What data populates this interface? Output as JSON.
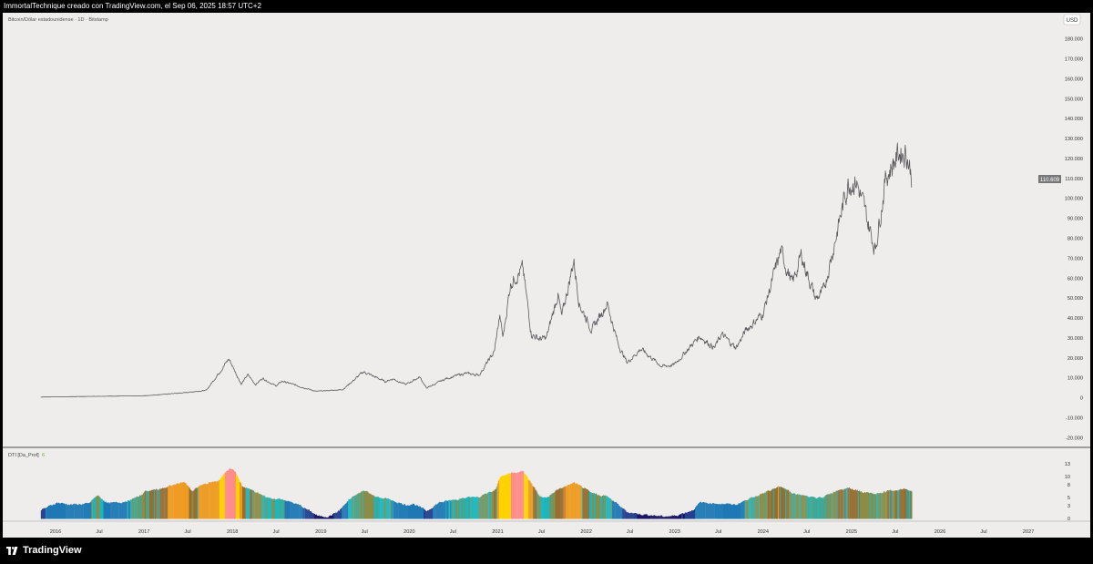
{
  "header": {
    "caption": "ImmortalTechnique creado con TradingView.com, el Sep 06, 2025 18:57 UTC+2"
  },
  "main_pane": {
    "title": "Bitcoin/Dólar estadounidense · 1D · Bitstamp",
    "currency_button": "USD",
    "last_price_label": "110.609",
    "price_tick_labels": [
      "180.000",
      "170.000",
      "160.000",
      "150.000",
      "140.000",
      "130.000",
      "120.000",
      "110.000",
      "100.000",
      "90.000",
      "80.000",
      "70.000",
      "60.000",
      "50.000",
      "40.000",
      "30.000",
      "20.000",
      "10.000",
      "0",
      "-10.000",
      "-20.000"
    ]
  },
  "indicator_pane": {
    "title": "DTI [Da_Prof]",
    "value": "6",
    "tick_labels": [
      "13",
      "10",
      "8",
      "5",
      "3",
      "0"
    ]
  },
  "time_axis": {
    "labels": [
      "2016",
      "Jul",
      "2017",
      "Jul",
      "2018",
      "Jul",
      "2019",
      "Jul",
      "2020",
      "Jul",
      "2021",
      "Jul",
      "2022",
      "Jul",
      "2023",
      "Jul",
      "2024",
      "Jul",
      "2025",
      "Jul",
      "2026",
      "Jul",
      "2027"
    ]
  },
  "footer": {
    "brand": "TradingView"
  },
  "colors": {
    "background": "#eeedec",
    "price_line": "#5a5a5e",
    "dti_palette": [
      "#1b1464",
      "#23408e",
      "#1e78b4",
      "#1ab6be",
      "#8c8c46",
      "#966e32",
      "#ee9a1e",
      "#ffd200",
      "#ff8c8c"
    ]
  },
  "chart_data": [
    {
      "type": "line",
      "title": "Bitcoin/Dólar estadounidense · 1D · Bitstamp",
      "ylim": [
        -20000,
        180000
      ],
      "xlim": [
        "2015-11-01",
        "2027-04-01"
      ],
      "grid": false,
      "series": [
        {
          "name": "BTCUSD",
          "points": [
            [
              "2015-11-01",
              330
            ],
            [
              "2016-06-15",
              700
            ],
            [
              "2016-12-31",
              960
            ],
            [
              "2017-06-15",
              2500
            ],
            [
              "2017-09-15",
              3700
            ],
            [
              "2017-12-17",
              19500
            ],
            [
              "2018-02-06",
              6900
            ],
            [
              "2018-03-05",
              11500
            ],
            [
              "2018-04-06",
              6600
            ],
            [
              "2018-05-05",
              9800
            ],
            [
              "2018-06-29",
              5900
            ],
            [
              "2018-07-25",
              8300
            ],
            [
              "2018-11-25",
              3800
            ],
            [
              "2018-12-15",
              3200
            ],
            [
              "2019-04-01",
              4100
            ],
            [
              "2019-06-26",
              13000
            ],
            [
              "2019-09-24",
              8100
            ],
            [
              "2019-10-26",
              9500
            ],
            [
              "2019-12-17",
              6600
            ],
            [
              "2020-02-13",
              10400
            ],
            [
              "2020-03-12",
              4800
            ],
            [
              "2020-06-01",
              9600
            ],
            [
              "2020-08-17",
              12200
            ],
            [
              "2020-10-15",
              11400
            ],
            [
              "2020-12-17",
              23000
            ],
            [
              "2021-01-08",
              41000
            ],
            [
              "2021-01-22",
              30000
            ],
            [
              "2021-02-21",
              57000
            ],
            [
              "2021-03-13",
              61000
            ],
            [
              "2021-04-14",
              64500
            ],
            [
              "2021-05-19",
              32000
            ],
            [
              "2021-06-22",
              29500
            ],
            [
              "2021-07-20",
              29800
            ],
            [
              "2021-09-06",
              52000
            ],
            [
              "2021-09-21",
              40000
            ],
            [
              "2021-11-10",
              69000
            ],
            [
              "2021-12-04",
              47000
            ],
            [
              "2022-01-24",
              34000
            ],
            [
              "2022-03-28",
              47500
            ],
            [
              "2022-05-12",
              27000
            ],
            [
              "2022-06-18",
              17600
            ],
            [
              "2022-08-14",
              24500
            ],
            [
              "2022-11-09",
              15700
            ],
            [
              "2022-12-30",
              16500
            ],
            [
              "2023-04-14",
              31000
            ],
            [
              "2023-06-15",
              25000
            ],
            [
              "2023-07-13",
              31800
            ],
            [
              "2023-09-11",
              25000
            ],
            [
              "2023-10-23",
              34000
            ],
            [
              "2023-12-31",
              42200
            ],
            [
              "2024-03-14",
              73500
            ],
            [
              "2024-05-01",
              57000
            ],
            [
              "2024-06-07",
              71500
            ],
            [
              "2024-08-05",
              49500
            ],
            [
              "2024-09-06",
              53000
            ],
            [
              "2024-11-12",
              89000
            ],
            [
              "2024-12-17",
              108000
            ],
            [
              "2025-01-20",
              109000
            ],
            [
              "2025-04-08",
              74500
            ],
            [
              "2025-05-22",
              111000
            ],
            [
              "2025-07-14",
              122900
            ],
            [
              "2025-08-14",
              124000
            ],
            [
              "2025-09-06",
              110609
            ]
          ]
        }
      ]
    },
    {
      "type": "area",
      "title": "DTI [Da_Prof]",
      "ylim": [
        0,
        13
      ],
      "xlim": [
        "2015-11-01",
        "2027-04-01"
      ],
      "series": [
        {
          "name": "DTI",
          "points": [
            [
              "2015-11-01",
              2.0
            ],
            [
              "2016-01-05",
              3.8
            ],
            [
              "2016-03-01",
              3.3
            ],
            [
              "2016-05-15",
              3.5
            ],
            [
              "2016-06-20",
              5.5
            ],
            [
              "2016-08-01",
              3.6
            ],
            [
              "2016-10-01",
              3.9
            ],
            [
              "2016-12-01",
              5.0
            ],
            [
              "2017-01-05",
              6.5
            ],
            [
              "2017-03-01",
              7.0
            ],
            [
              "2017-05-01",
              8.0
            ],
            [
              "2017-06-12",
              8.8
            ],
            [
              "2017-07-15",
              6.5
            ],
            [
              "2017-09-01",
              8.2
            ],
            [
              "2017-11-01",
              9.0
            ],
            [
              "2017-12-17",
              12.0
            ],
            [
              "2018-01-10",
              11.2
            ],
            [
              "2018-02-06",
              7.8
            ],
            [
              "2018-04-01",
              6.4
            ],
            [
              "2018-06-01",
              4.8
            ],
            [
              "2018-08-01",
              4.4
            ],
            [
              "2018-10-01",
              3.2
            ],
            [
              "2018-11-25",
              1.4
            ],
            [
              "2018-12-20",
              0.5
            ],
            [
              "2019-02-01",
              0.5
            ],
            [
              "2019-03-15",
              1.8
            ],
            [
              "2019-05-01",
              4.8
            ],
            [
              "2019-06-26",
              6.8
            ],
            [
              "2019-08-01",
              5.5
            ],
            [
              "2019-09-25",
              4.8
            ],
            [
              "2019-12-15",
              3.2
            ],
            [
              "2020-01-15",
              3.5
            ],
            [
              "2020-03-12",
              1.8
            ],
            [
              "2020-05-01",
              3.8
            ],
            [
              "2020-08-01",
              4.8
            ],
            [
              "2020-10-20",
              5.2
            ],
            [
              "2020-12-20",
              7.0
            ],
            [
              "2021-01-08",
              10.0
            ],
            [
              "2021-03-01",
              11.0
            ],
            [
              "2021-04-14",
              11.2
            ],
            [
              "2021-05-19",
              8.2
            ],
            [
              "2021-06-22",
              5.2
            ],
            [
              "2021-07-20",
              5.0
            ],
            [
              "2021-09-06",
              7.0
            ],
            [
              "2021-11-10",
              8.5
            ],
            [
              "2022-01-24",
              6.0
            ],
            [
              "2022-03-28",
              5.2
            ],
            [
              "2022-05-12",
              3.2
            ],
            [
              "2022-06-18",
              1.5
            ],
            [
              "2022-08-14",
              1.0
            ],
            [
              "2022-11-09",
              0.5
            ],
            [
              "2022-12-30",
              0.6
            ],
            [
              "2023-03-15",
              2.0
            ],
            [
              "2023-04-14",
              3.8
            ],
            [
              "2023-06-15",
              3.6
            ],
            [
              "2023-09-11",
              3.3
            ],
            [
              "2023-10-23",
              4.5
            ],
            [
              "2023-12-31",
              6.0
            ],
            [
              "2024-03-14",
              7.8
            ],
            [
              "2024-05-01",
              6.0
            ],
            [
              "2024-08-05",
              4.8
            ],
            [
              "2024-09-06",
              5.2
            ],
            [
              "2024-11-12",
              7.0
            ],
            [
              "2024-12-17",
              7.4
            ],
            [
              "2025-02-01",
              6.5
            ],
            [
              "2025-04-08",
              5.8
            ],
            [
              "2025-05-22",
              6.5
            ],
            [
              "2025-08-14",
              7.0
            ],
            [
              "2025-09-06",
              6.5
            ]
          ]
        }
      ]
    }
  ]
}
